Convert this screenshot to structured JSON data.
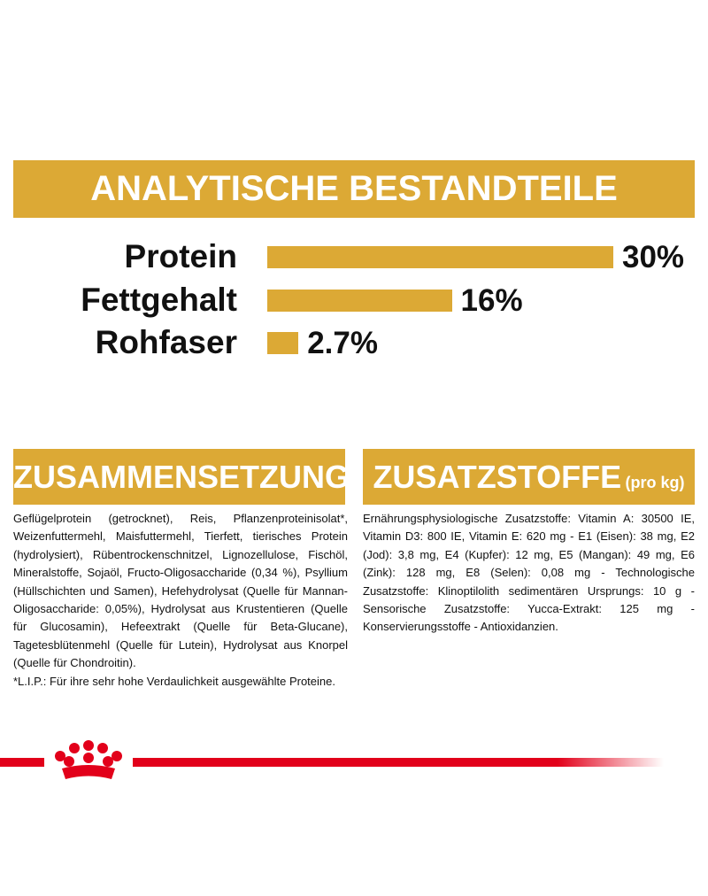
{
  "chart_data": {
    "type": "bar",
    "title": "ANALYTISCHE BESTANDTEILE",
    "categories": [
      "Protein",
      "Fettgehalt",
      "Rohfaser"
    ],
    "values": [
      30,
      16,
      2.7
    ],
    "value_labels": [
      "30%",
      "16%",
      "2.7%"
    ],
    "color": "#dca935"
  },
  "composition": {
    "title": "ZUSAMMENSETZUNG",
    "paragraphs": [
      "Geflügelprotein (getrocknet), Reis, Pflanzenproteinisolat*, Weizenfuttermehl, Maisfuttermehl, Tierfett, tierisches Protein (hydrolysiert), Rübentrockenschnitzel, Lignozellulose, Fischöl, Mineralstoffe, Sojaöl, Fructo-Oligosaccharide (0,34 %), Psyllium (Hüllschichten und Samen), Hefehydrolysat (Quelle für Mannan-Oligosaccharide: 0,05%), Hydrolysat aus Krustentieren (Quelle für Glucosamin), Hefeextrakt (Quelle für Beta-Glucane), Tagetesblütenmehl (Quelle für Lutein), Hydrolysat aus Knorpel (Quelle für Chondroitin).",
      "*L.I.P.: Für ihre sehr hohe Verdaulichkeit ausgewählte Proteine."
    ]
  },
  "additives": {
    "title": "ZUSATZSTOFFE",
    "subtitle": "(pro kg)",
    "text": "Ernährungsphysiologische Zusatzstoffe: Vitamin A: 30500 IE, Vitamin D3: 800 IE, Vitamin E: 620 mg - E1 (Eisen): 38 mg, E2 (Jod): 3,8 mg, E4 (Kupfer): 12 mg, E5 (Mangan): 49 mg, E6 (Zink): 128 mg, E8 (Selen): 0,08 mg - Technologische Zusatzstoffe: Klinoptilolith sedimentären Ursprungs: 10 g - Sensorische Zusatzstoffe: Yucca-Extrakt: 125 mg - Konservierungsstoffe - Antioxidanzien."
  }
}
